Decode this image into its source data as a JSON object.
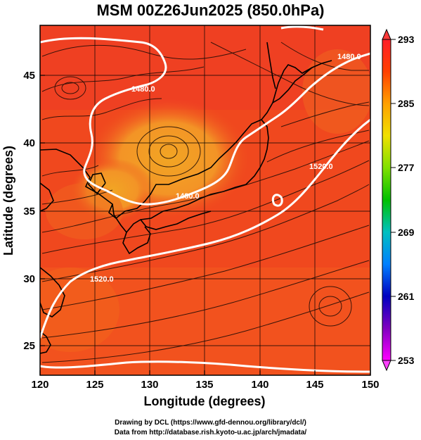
{
  "title": "MSM 00Z26Jun2025 (850.0hPa)",
  "map": {
    "x_axis": {
      "label": "Longitude (degrees)",
      "ticks": [
        "120",
        "125",
        "130",
        "135",
        "140",
        "145",
        "150"
      ],
      "range": [
        120,
        150
      ]
    },
    "y_axis": {
      "label": "Latitude  (degrees)",
      "ticks": [
        "25",
        "30",
        "35",
        "40",
        "45"
      ],
      "range": [
        22.4,
        47.6
      ]
    },
    "field": "temperature (shaded) with geopotential height contours and streamlines",
    "contour_labels": [
      "1480.0",
      "1480.0",
      "1480.0",
      "1520.0",
      "1520.0"
    ],
    "colors": {
      "warm": "#f0401e",
      "hot": "#ff2a1a",
      "mild": "#f29a24",
      "coast": "#000000",
      "contour": "#ffffff"
    }
  },
  "colorbar": {
    "labels": [
      "293",
      "285",
      "277",
      "269",
      "261",
      "253"
    ],
    "min": 253,
    "max": 293,
    "colors": [
      "#ff00ff",
      "#8000c0",
      "#0000c0",
      "#0080ff",
      "#00c0c0",
      "#00c000",
      "#80e000",
      "#f0e000",
      "#ffa000",
      "#ff4000",
      "#ff1e28"
    ]
  },
  "credit": {
    "line1": "Drawing by DCL (https://www.gfd-dennou.org/library/dcl/)",
    "line2": "Data from http://database.rish.kyoto-u.ac.jp/arch/jmadata/"
  }
}
